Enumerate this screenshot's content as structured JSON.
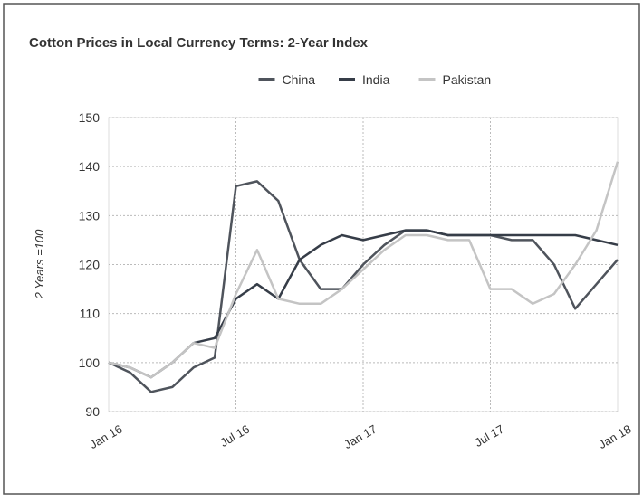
{
  "chart_data": {
    "type": "line",
    "title": "Cotton Prices in Local Currency Terms: 2-Year Index",
    "y_label": "2 Years =100",
    "categories": [
      "Jan 16",
      null,
      null,
      null,
      null,
      null,
      "Jul 16",
      null,
      null,
      null,
      null,
      null,
      "Jan 17",
      null,
      null,
      null,
      null,
      null,
      "Jul 17",
      null,
      null,
      null,
      null,
      null,
      "Jan 18"
    ],
    "series": [
      {
        "name": "China",
        "color": "#4f545c",
        "values": [
          100,
          98,
          94,
          95,
          99,
          101,
          136,
          137,
          133,
          121,
          115,
          115,
          120,
          124,
          127,
          127,
          126,
          126,
          126,
          125,
          125,
          120,
          111,
          116,
          121
        ]
      },
      {
        "name": "India",
        "color": "#363d48",
        "values": [
          100,
          99,
          97,
          100,
          104,
          105,
          113,
          116,
          113,
          121,
          124,
          126,
          125,
          126,
          127,
          127,
          126,
          126,
          126,
          126,
          126,
          126,
          126,
          125,
          124
        ]
      },
      {
        "name": "Pakistan",
        "color": "#c4c4c4",
        "values": [
          100,
          99,
          97,
          100,
          104,
          103,
          114,
          123,
          113,
          112,
          112,
          115,
          119,
          123,
          126,
          126,
          125,
          125,
          115,
          115,
          112,
          114,
          120,
          127,
          141
        ]
      }
    ],
    "ylim": [
      90,
      150
    ],
    "yticks": [
      90,
      100,
      110,
      120,
      130,
      140,
      150
    ],
    "grid": true,
    "legend": "top"
  }
}
